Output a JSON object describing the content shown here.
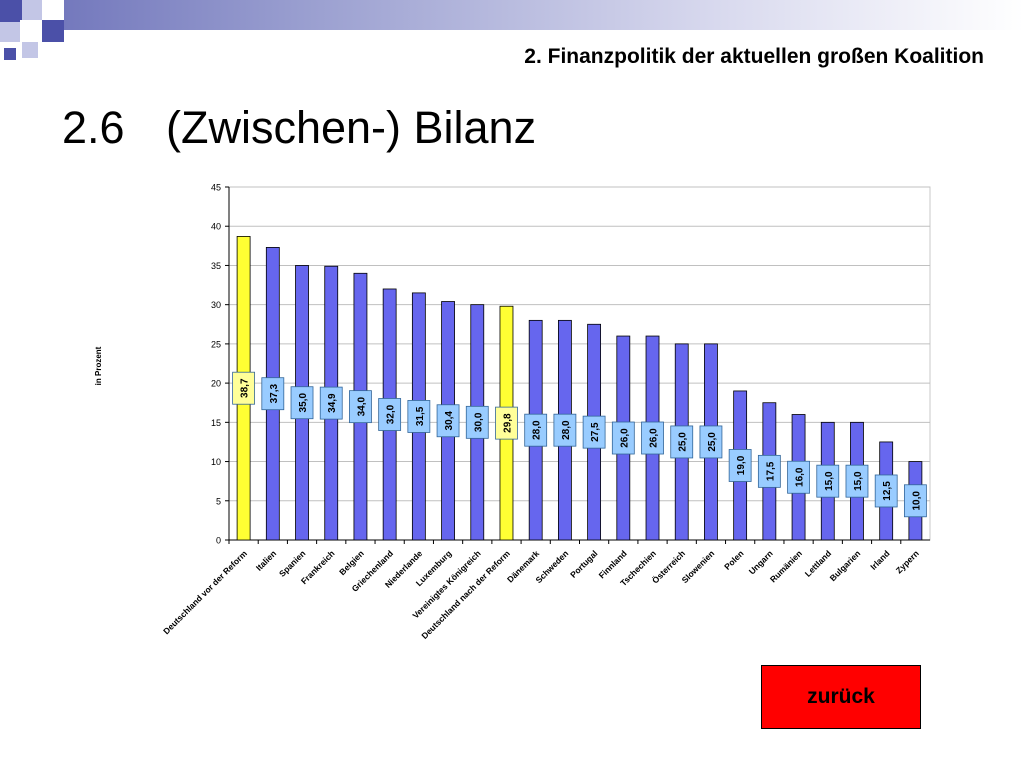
{
  "header": {
    "subtitle": "2. Finanzpolitik der aktuellen großen Koalition",
    "section_number": "2.6",
    "section_title": "(Zwischen-) Bilanz"
  },
  "colors": {
    "bar": "#6666ee",
    "bar_highlight": "#ffff33",
    "label_box": "#99ccff",
    "label_box_highlight": "#ffff99",
    "back_button": "#ff0000"
  },
  "chart_data": {
    "type": "bar",
    "title": "",
    "xlabel": "",
    "ylabel": "in Prozent",
    "ylim": [
      0,
      45
    ],
    "yticks": [
      0,
      5,
      10,
      15,
      20,
      25,
      30,
      35,
      40,
      45
    ],
    "grid": true,
    "legend": "none",
    "categories": [
      "Deutschland vor der Reform",
      "Italien",
      "Spanien",
      "Frankreich",
      "Belgien",
      "Griechenland",
      "Niederlande",
      "Luxemburg",
      "Vereinigtes Königreich",
      "Deutschland nach der Reform",
      "Dänemark",
      "Schweden",
      "Portugal",
      "Finnland",
      "Tschechien",
      "Österreich",
      "Slowenien",
      "Polen",
      "Ungarn",
      "Rumänien",
      "Lettland",
      "Bulgarien",
      "Irland",
      "Zypern"
    ],
    "values": [
      38.7,
      37.3,
      35.0,
      34.9,
      34.0,
      32.0,
      31.5,
      30.4,
      30.0,
      29.8,
      28.0,
      28.0,
      27.5,
      26.0,
      26.0,
      25.0,
      25.0,
      19.0,
      17.5,
      16.0,
      15.0,
      15.0,
      12.5,
      10.0
    ],
    "value_labels": [
      "38,7",
      "37,3",
      "35,0",
      "34,9",
      "34,0",
      "32,0",
      "31,5",
      "30,4",
      "30,0",
      "29,8",
      "28,0",
      "28,0",
      "27,5",
      "26,0",
      "26,0",
      "25,0",
      "25,0",
      "19,0",
      "17,5",
      "16,0",
      "15,0",
      "15,0",
      "12,5",
      "10,0"
    ],
    "highlighted_categories": [
      "Deutschland vor der Reform",
      "Deutschland nach der Reform"
    ]
  },
  "nav": {
    "back_label": "zurück"
  }
}
